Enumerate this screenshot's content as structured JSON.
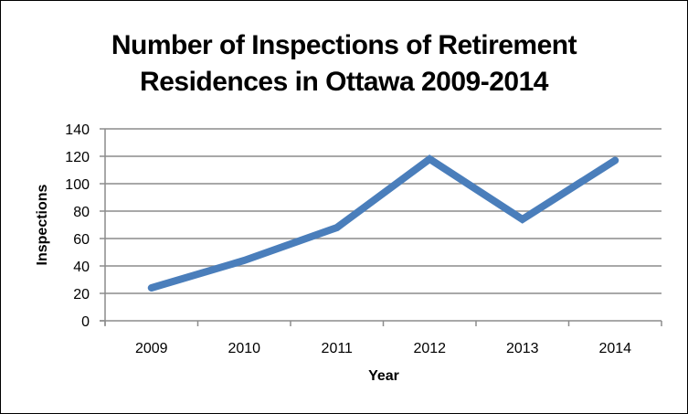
{
  "chart_data": {
    "type": "line",
    "title": "Number of Inspections of Retirement Residences in Ottawa 2009-2014",
    "title_lines": [
      "Number of Inspections of Retirement",
      "Residences in Ottawa 2009-2014"
    ],
    "xlabel": "Year",
    "ylabel": "Inspections",
    "categories": [
      "2009",
      "2010",
      "2011",
      "2012",
      "2013",
      "2014"
    ],
    "series": [
      {
        "name": "Inspections",
        "color": "#4a7ebb",
        "values": [
          24,
          44,
          68,
          118,
          74,
          117
        ]
      }
    ],
    "ylim": [
      0,
      140
    ],
    "yticks": [
      0,
      20,
      40,
      60,
      80,
      100,
      120,
      140
    ],
    "grid": true,
    "legend": "none"
  },
  "colors": {
    "line": "#4a7ebb",
    "grid": "#8c8c8c",
    "axis": "#8c8c8c",
    "border": "#000000"
  }
}
